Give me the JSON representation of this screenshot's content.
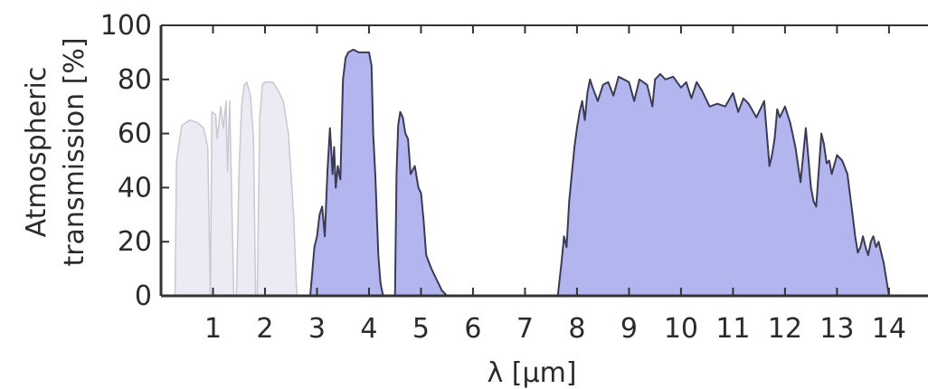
{
  "chart_data": {
    "type": "area",
    "title": "",
    "xlabel": "λ [µm]",
    "ylabel_lines": [
      "Atmospheric",
      "transmission [%]"
    ],
    "xlim": [
      0,
      14.75
    ],
    "ylim": [
      0,
      100
    ],
    "x_ticks": [
      1,
      2,
      3,
      4,
      5,
      6,
      7,
      8,
      9,
      10,
      11,
      12,
      13,
      14
    ],
    "y_ticks": [
      0,
      20,
      40,
      60,
      80,
      100
    ],
    "grid": false,
    "legend": "none",
    "colors": {
      "band_fill": "#b3b5ee",
      "band_stroke": "#3b3b55",
      "faint_fill": "#eceaf2",
      "faint_stroke": "#c9c8d2",
      "axis": "#333333"
    },
    "series": [
      {
        "style": "faint",
        "x": [
          0.27,
          0.3,
          0.4,
          0.55,
          0.7,
          0.82,
          0.9,
          0.95,
          0.98,
          1.05,
          1.08,
          1.15,
          1.2,
          1.25,
          1.28,
          1.32,
          1.35,
          1.4,
          1.45,
          1.5,
          1.55,
          1.6,
          1.65,
          1.72,
          1.78,
          1.82,
          1.85,
          1.9,
          1.95,
          2.0,
          2.05,
          2.15,
          2.25,
          2.35,
          2.45,
          2.55,
          2.6,
          2.62
        ],
        "y": [
          0,
          50,
          63,
          65,
          64,
          62,
          55,
          0,
          68,
          67,
          58,
          70,
          62,
          72,
          46,
          72,
          45,
          0,
          0,
          45,
          70,
          78,
          79,
          74,
          58,
          0,
          0,
          66,
          78,
          79,
          79,
          79,
          76,
          72,
          60,
          30,
          5,
          0
        ]
      },
      {
        "style": "band",
        "x": [
          2.87,
          2.95,
          3.0,
          3.05,
          3.1,
          3.15,
          3.2,
          3.25,
          3.3,
          3.33,
          3.36,
          3.4,
          3.45,
          3.5,
          3.55,
          3.6,
          3.7,
          3.8,
          3.9,
          4.0,
          4.05,
          4.08,
          4.12,
          4.18,
          4.22,
          4.26,
          4.28
        ],
        "y": [
          0,
          18,
          22,
          30,
          33,
          22,
          46,
          62,
          45,
          55,
          40,
          48,
          43,
          80,
          88,
          90,
          91,
          90,
          90,
          90,
          85,
          60,
          45,
          15,
          5,
          1,
          0
        ]
      },
      {
        "style": "band",
        "x": [
          4.5,
          4.53,
          4.56,
          4.6,
          4.65,
          4.7,
          4.75,
          4.8,
          4.88,
          4.95,
          5.0,
          5.05,
          5.1,
          5.2,
          5.3,
          5.4,
          5.5
        ],
        "y": [
          0,
          45,
          63,
          68,
          66,
          60,
          58,
          45,
          48,
          40,
          38,
          28,
          15,
          10,
          6,
          2,
          0
        ]
      },
      {
        "style": "band",
        "x": [
          7.63,
          7.7,
          7.75,
          7.8,
          7.85,
          7.9,
          7.95,
          8.0,
          8.05,
          8.1,
          8.15,
          8.2,
          8.25,
          8.3,
          8.4,
          8.5,
          8.6,
          8.7,
          8.8,
          8.9,
          9.0,
          9.1,
          9.2,
          9.35,
          9.45,
          9.5,
          9.6,
          9.7,
          9.85,
          10.0,
          10.1,
          10.2,
          10.3,
          10.4,
          10.55,
          10.7,
          10.85,
          11.0,
          11.1,
          11.2,
          11.3,
          11.45,
          11.6,
          11.7,
          11.75,
          11.8,
          11.85,
          11.9,
          12.0,
          12.1,
          12.2,
          12.3,
          12.4,
          12.5,
          12.55,
          12.6,
          12.7,
          12.75,
          12.8,
          12.85,
          12.9,
          13.0,
          13.1,
          13.2,
          13.3,
          13.35,
          13.4,
          13.45,
          13.5,
          13.55,
          13.6,
          13.65,
          13.7,
          13.75,
          13.8,
          13.9,
          14.0
        ],
        "y": [
          0,
          12,
          22,
          18,
          35,
          45,
          55,
          62,
          68,
          72,
          65,
          75,
          80,
          77,
          72,
          78,
          79,
          74,
          81,
          80,
          79,
          72,
          80,
          78,
          70,
          80,
          82,
          80,
          81,
          77,
          79,
          73,
          79,
          76,
          70,
          71,
          70,
          75,
          68,
          73,
          71,
          66,
          72,
          48,
          52,
          58,
          69,
          66,
          70,
          64,
          55,
          42,
          62,
          40,
          35,
          33,
          60,
          56,
          49,
          50,
          45,
          52,
          50,
          45,
          30,
          22,
          16,
          18,
          22,
          18,
          15,
          20,
          22,
          18,
          20,
          12,
          0
        ]
      }
    ]
  }
}
